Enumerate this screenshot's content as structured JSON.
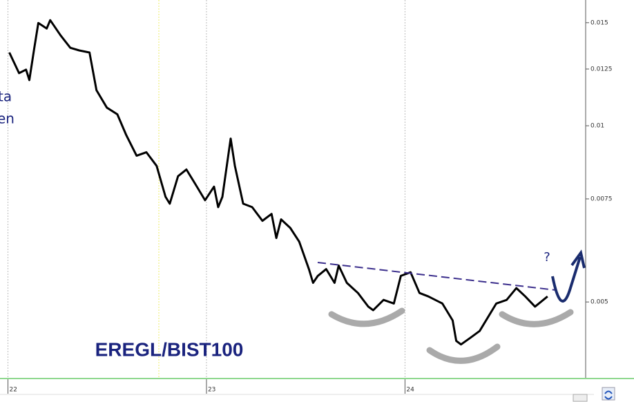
{
  "chart_data": {
    "type": "line",
    "title": "EREGL/BIST100",
    "annotations": [
      "?",
      "ta",
      "en"
    ],
    "color": "#000000",
    "log_scale": true,
    "grid": true,
    "x": [
      22.007,
      22.056,
      22.091,
      22.108,
      22.132,
      22.153,
      22.195,
      22.213,
      22.265,
      22.314,
      22.359,
      22.411,
      22.446,
      22.498,
      22.551,
      22.596,
      22.648,
      22.697,
      22.749,
      22.794,
      22.815,
      22.857,
      22.899,
      22.941,
      22.993,
      23.038,
      23.059,
      23.08,
      23.122,
      23.143,
      23.185,
      23.23,
      23.282,
      23.328,
      23.352,
      23.376,
      23.422,
      23.467,
      23.516,
      23.537,
      23.561,
      23.603,
      23.645,
      23.666,
      23.707,
      23.763,
      23.815,
      23.84,
      23.892,
      23.944,
      23.979,
      24.028,
      24.073,
      24.118,
      24.188,
      24.24,
      24.258,
      24.282,
      24.328,
      24.376,
      24.418,
      24.46,
      24.512,
      24.561,
      24.606,
      24.655,
      24.718
    ],
    "values": [
      0.01334,
      0.0123,
      0.01247,
      0.01197,
      0.01352,
      0.01498,
      0.01466,
      0.01515,
      0.01427,
      0.01359,
      0.01345,
      0.01334,
      0.0115,
      0.01074,
      0.01046,
      0.00964,
      0.00889,
      0.00901,
      0.00854,
      0.00756,
      0.00736,
      0.0082,
      0.00842,
      0.00798,
      0.00746,
      0.00787,
      0.00726,
      0.00756,
      0.00951,
      0.00854,
      0.00736,
      0.00726,
      0.00688,
      0.00707,
      0.00643,
      0.00692,
      0.00669,
      0.00634,
      0.00569,
      0.00539,
      0.00554,
      0.00569,
      0.00539,
      0.00577,
      0.00539,
      0.00518,
      0.00491,
      0.00484,
      0.00504,
      0.00497,
      0.00554,
      0.00562,
      0.00518,
      0.00511,
      0.00497,
      0.00465,
      0.00429,
      0.00423,
      0.00434,
      0.00446,
      0.00471,
      0.00497,
      0.00504,
      0.00528,
      0.00511,
      0.00491,
      0.00511
    ],
    "xlim": [
      21.96,
      24.91
    ],
    "xticks": [
      22,
      23,
      24
    ],
    "ylim": [
      0.0037,
      0.0164
    ],
    "yticks": [
      0.005,
      0.0075,
      0.01,
      0.0125,
      0.015
    ]
  }
}
